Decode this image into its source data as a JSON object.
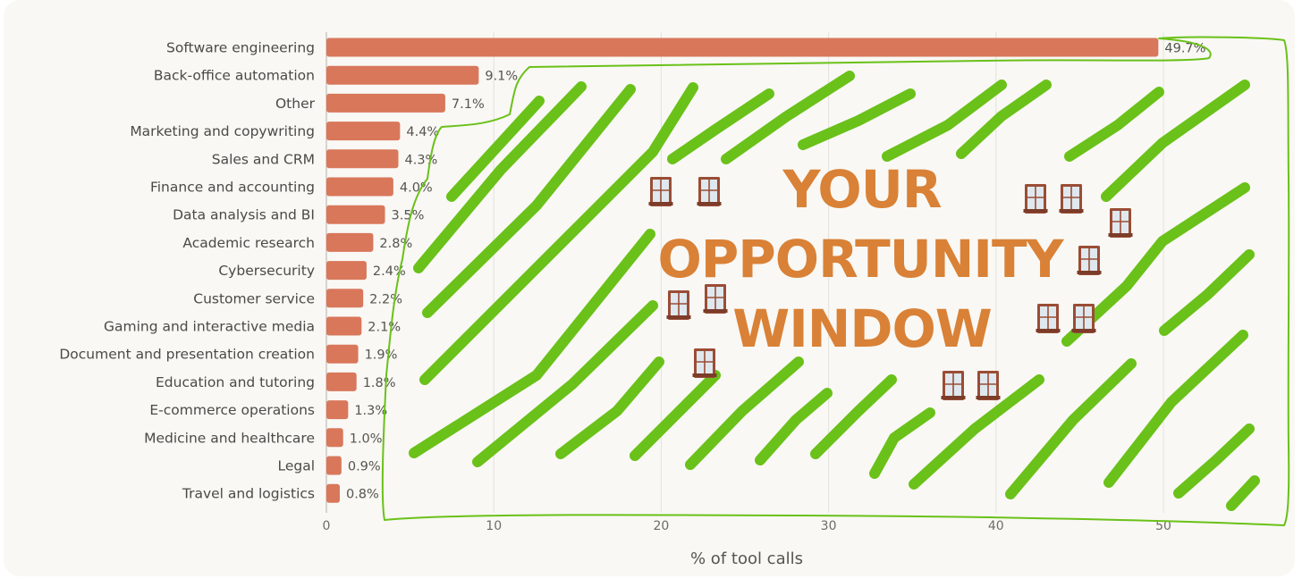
{
  "chart_data": {
    "type": "bar",
    "orientation": "horizontal",
    "categories": [
      "Software engineering",
      "Back-office automation",
      "Other",
      "Marketing and copywriting",
      "Sales and CRM",
      "Finance and accounting",
      "Data analysis and BI",
      "Academic research",
      "Cybersecurity",
      "Customer service",
      "Gaming and interactive media",
      "Document and presentation creation",
      "Education and tutoring",
      "E-commerce operations",
      "Medicine and healthcare",
      "Legal",
      "Travel and logistics"
    ],
    "values": [
      49.7,
      9.1,
      7.1,
      4.4,
      4.3,
      4.0,
      3.5,
      2.8,
      2.4,
      2.2,
      2.1,
      1.9,
      1.8,
      1.3,
      1.0,
      0.9,
      0.8
    ],
    "value_labels": [
      "49.7%",
      "9.1%",
      "7.1%",
      "4.4%",
      "4.3%",
      "4.0%",
      "3.5%",
      "2.8%",
      "2.4%",
      "2.2%",
      "2.1%",
      "1.9%",
      "1.8%",
      "1.3%",
      "1.0%",
      "0.9%",
      "0.8%"
    ],
    "xlabel": "% of tool calls",
    "xticks": [
      0,
      10,
      20,
      30,
      40,
      50
    ],
    "xlim": [
      0,
      57
    ],
    "grid": "vertical",
    "bar_color": "#d9775b",
    "background_color": "#f9f8f4"
  },
  "annotation": {
    "lines": [
      "YOUR",
      "OPPORTUNITY",
      "WINDOW"
    ],
    "text_color": "#d98136",
    "hatch_color": "#6ac119",
    "icon": "window-icon"
  }
}
